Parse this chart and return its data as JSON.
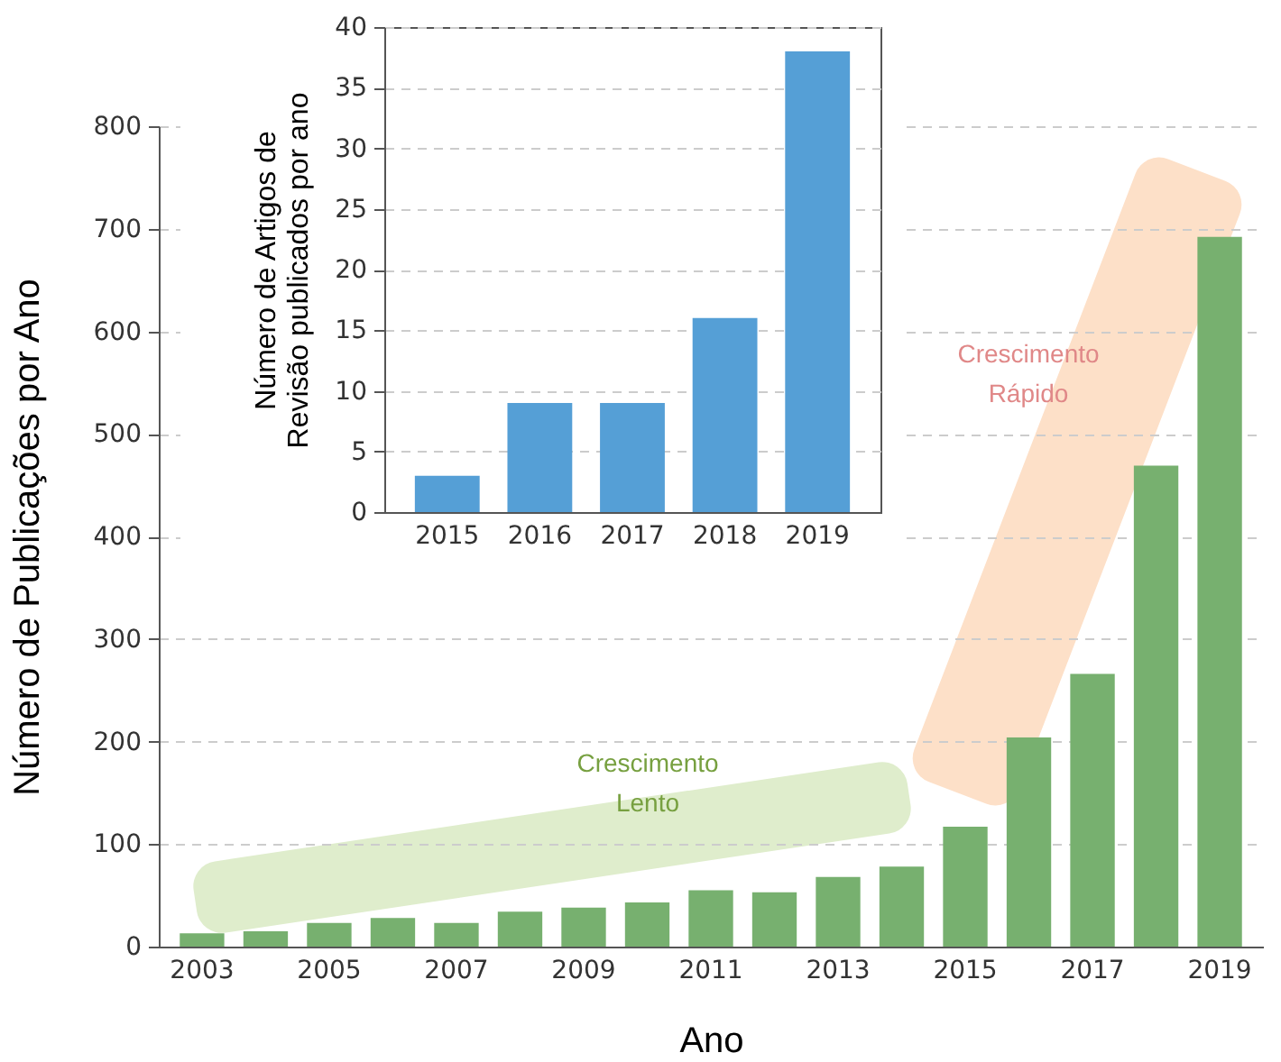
{
  "chart_data": [
    {
      "type": "bar",
      "xlabel": "Ano",
      "ylabel": "Número de Publicações por Ano",
      "categories": [
        "2003",
        null,
        "2005",
        null,
        "2007",
        null,
        "2009",
        null,
        "2011",
        null,
        "2013",
        null,
        "2015",
        null,
        "2017",
        null,
        "2019"
      ],
      "values": [
        13,
        15,
        23,
        28,
        23,
        34,
        38,
        43,
        55,
        53,
        68,
        78,
        117,
        204,
        266,
        469,
        692
      ],
      "color": "#77b06f",
      "ylim": [
        0,
        800
      ],
      "yticks": [
        0,
        100,
        200,
        300,
        400,
        500,
        600,
        700,
        800
      ],
      "grid": "y",
      "annotations": [
        "Crescimento Lento",
        "Crescimento Rápido"
      ]
    },
    {
      "type": "bar",
      "ylabel": "Número de Artigos de Revisão publicados por ano",
      "categories": [
        "2015",
        "2016",
        "2017",
        "2018",
        "2019"
      ],
      "values": [
        3,
        9,
        9,
        16,
        38
      ],
      "color": "#559fd6",
      "ylim": [
        0,
        40
      ],
      "yticks": [
        0,
        5,
        10,
        15,
        20,
        25,
        30,
        35,
        40
      ],
      "grid": "y"
    }
  ]
}
